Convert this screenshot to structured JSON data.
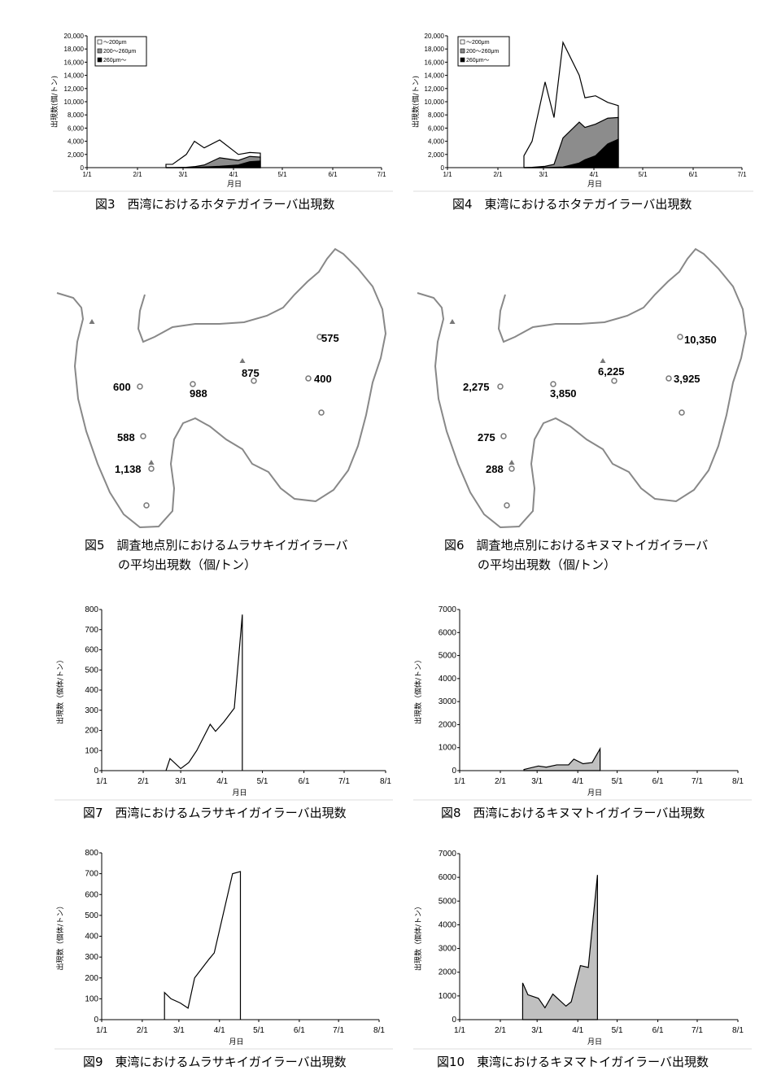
{
  "captions": {
    "fig3": "図3　西湾におけるホタテガイラーバ出現数",
    "fig4": "図4　東湾におけるホタテガイラーバ出現数",
    "fig5_l1": "図5　調査地点別におけるムラサキイガイラーバ",
    "fig5_l2": "の平均出現数（個/トン）",
    "fig6_l1": "図6　調査地点別におけるキヌマトイガイラーバ",
    "fig6_l2": "の平均出現数（個/トン）",
    "fig7": "図7　西湾におけるムラサキイガイラーバ出現数",
    "fig8": "図8　西湾におけるキヌマトイガイラーバ出現数",
    "fig9": "図9　東湾におけるムラサキイガイラーバ出現数",
    "fig10": "図10　東湾におけるキヌマトイガイラーバ出現数"
  },
  "maps": {
    "fig5": {
      "labels": [
        "575",
        "875",
        "400",
        "600",
        "988",
        "588",
        "1,138"
      ]
    },
    "fig6": {
      "labels": [
        "10,350",
        "6,225",
        "3,925",
        "2,275",
        "3,850",
        "275",
        "288"
      ]
    }
  },
  "chart_data": [
    {
      "id": "fig3",
      "type": "area",
      "stacked": true,
      "xlabel": "月日",
      "ylabel": "出現数(個/トン)",
      "ylim": [
        0,
        20000
      ],
      "yticks": [
        "0",
        "2,000",
        "4,000",
        "6,000",
        "8,000",
        "10,000",
        "12,000",
        "14,000",
        "16,000",
        "18,000",
        "20,000"
      ],
      "xticks": [
        "1/1",
        "2/1",
        "3/1",
        "4/1",
        "5/1",
        "6/1",
        "7/1"
      ],
      "xdays": [
        0,
        31,
        59,
        90,
        120,
        151,
        181
      ],
      "legend": [
        "～200μm",
        "200～260μm",
        "260μm～"
      ],
      "x": [
        48.5,
        52.5,
        61,
        66,
        72,
        81.5,
        93,
        100,
        106.5
      ],
      "series": [
        {
          "name": "～200μm",
          "cumulative": [
            500,
            500,
            2000,
            4000,
            3000,
            4200,
            2000,
            2300,
            2200
          ],
          "color": "#ffffff"
        },
        {
          "name": "200～260μm",
          "cumulative": [
            0,
            0,
            50,
            150,
            400,
            1500,
            1100,
            1700,
            1600
          ],
          "color": "#8c8c8c"
        },
        {
          "name": "260μm～",
          "cumulative": [
            0,
            0,
            0,
            50,
            100,
            200,
            400,
            900,
            1000
          ],
          "color": "#000000"
        }
      ]
    },
    {
      "id": "fig4",
      "type": "area",
      "stacked": true,
      "xlabel": "月日",
      "ylabel": "出現数(個/トン)",
      "ylim": [
        0,
        20000
      ],
      "yticks": [
        "0",
        "2,000",
        "4,000",
        "6,000",
        "8,000",
        "10,000",
        "12,000",
        "14,000",
        "16,000",
        "18,000",
        "20,000"
      ],
      "xticks": [
        "1/1",
        "2/1",
        "3/1",
        "4/1",
        "5/1",
        "6/1",
        "7/1"
      ],
      "xdays": [
        0,
        31,
        59,
        90,
        120,
        151,
        181
      ],
      "legend": [
        "～200μm",
        "200～260μm",
        "260μm～"
      ],
      "x": [
        47,
        52,
        60,
        65.5,
        71,
        81,
        84.5,
        91,
        98.5,
        105
      ],
      "series": [
        {
          "name": "～200μm",
          "cumulative": [
            1800,
            4000,
            13000,
            7600,
            19000,
            14000,
            10600,
            10900,
            9900,
            9400
          ],
          "color": "#ffffff"
        },
        {
          "name": "200～260μm",
          "cumulative": [
            0,
            50,
            200,
            500,
            4500,
            6900,
            6100,
            6600,
            7500,
            7600
          ],
          "color": "#8c8c8c"
        },
        {
          "name": "260μm～",
          "cumulative": [
            0,
            0,
            0,
            50,
            100,
            700,
            1200,
            1800,
            3600,
            4300
          ],
          "color": "#000000"
        }
      ]
    },
    {
      "id": "fig7",
      "type": "line",
      "xlabel": "月日",
      "ylabel": "出現数（個体/トン）",
      "ylim": [
        0,
        800
      ],
      "yticks": [
        "0",
        "100",
        "200",
        "300",
        "400",
        "500",
        "600",
        "700",
        "800"
      ],
      "xticks": [
        "1/1",
        "2/1",
        "3/1",
        "4/1",
        "5/1",
        "6/1",
        "7/1",
        "8/1"
      ],
      "xdays": [
        0,
        31,
        59,
        90,
        120,
        151,
        181,
        212
      ],
      "x": [
        48,
        51,
        59,
        65,
        71,
        81,
        85,
        91,
        99,
        105
      ],
      "values": [
        0,
        60,
        10,
        40,
        100,
        230,
        195,
        240,
        310,
        775
      ],
      "fill": "none"
    },
    {
      "id": "fig8",
      "type": "area",
      "xlabel": "月日",
      "ylabel": "出現数（個体/トン）",
      "ylim": [
        0,
        7000
      ],
      "yticks": [
        "0",
        "1000",
        "2000",
        "3000",
        "4000",
        "5000",
        "6000",
        "7000"
      ],
      "xticks": [
        "1/1",
        "2/1",
        "3/1",
        "4/1",
        "5/1",
        "6/1",
        "7/1",
        "8/1"
      ],
      "xdays": [
        0,
        31,
        59,
        90,
        120,
        151,
        181,
        212
      ],
      "x": [
        49,
        60,
        66,
        74,
        83,
        87,
        94,
        101,
        107
      ],
      "values": [
        50,
        200,
        150,
        250,
        250,
        500,
        300,
        350,
        950
      ],
      "fill": "#c0c0c0"
    },
    {
      "id": "fig9",
      "type": "line",
      "xlabel": "月日",
      "ylabel": "出現数（個体/トン）",
      "ylim": [
        0,
        800
      ],
      "yticks": [
        "0",
        "100",
        "200",
        "300",
        "400",
        "500",
        "600",
        "700",
        "800"
      ],
      "xticks": [
        "1/1",
        "2/1",
        "3/1",
        "4/1",
        "5/1",
        "6/1",
        "7/1",
        "8/1"
      ],
      "xdays": [
        0,
        31,
        59,
        90,
        120,
        151,
        181,
        212
      ],
      "x": [
        48,
        53,
        60,
        66,
        71,
        82,
        86,
        100,
        106
      ],
      "values": [
        130,
        100,
        80,
        55,
        200,
        290,
        320,
        700,
        710
      ],
      "fill": "none"
    },
    {
      "id": "fig10",
      "type": "area",
      "xlabel": "月日",
      "ylabel": "出現数（個体/トン）",
      "ylim": [
        0,
        7000
      ],
      "yticks": [
        "0",
        "1000",
        "2000",
        "3000",
        "4000",
        "5000",
        "6000",
        "7000"
      ],
      "xticks": [
        "1/1",
        "2/1",
        "3/1",
        "4/1",
        "5/1",
        "6/1",
        "7/1",
        "8/1"
      ],
      "xdays": [
        0,
        31,
        59,
        90,
        120,
        151,
        181,
        212
      ],
      "x": [
        48,
        52,
        60,
        65,
        71,
        81,
        85,
        92,
        98,
        105
      ],
      "values": [
        1550,
        1050,
        900,
        500,
        1080,
        570,
        750,
        2280,
        2200,
        6100
      ],
      "fill": "#c0c0c0"
    }
  ]
}
